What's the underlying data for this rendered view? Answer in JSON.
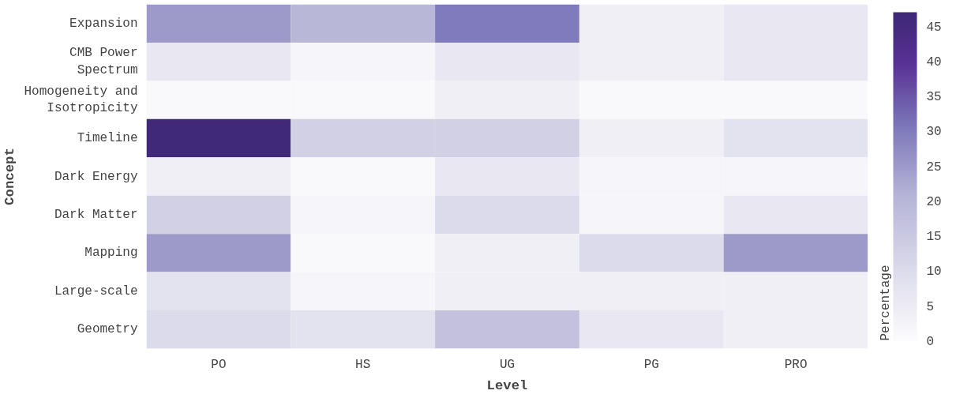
{
  "chart_data": {
    "type": "heatmap",
    "xlabel": "Level",
    "ylabel": "Concept",
    "clabel": "Percentage",
    "categories": [
      "PO",
      "HS",
      "UG",
      "PG",
      "PRO"
    ],
    "y_categories": [
      "Expansion",
      "CMB Power Spectrum",
      "Homogeneity and Isotropicity",
      "Timeline",
      "Dark Energy",
      "Dark Matter",
      "Mapping",
      "Large-scale",
      "Geometry"
    ],
    "cells": [
      [
        25,
        20,
        30,
        4,
        6
      ],
      [
        6,
        2,
        6,
        4,
        6
      ],
      [
        1,
        1,
        4,
        1,
        1
      ],
      [
        46,
        13,
        13,
        4,
        8
      ],
      [
        4,
        1,
        6,
        2,
        2
      ],
      [
        13,
        2,
        10,
        2,
        6
      ],
      [
        25,
        1,
        4,
        10,
        25
      ],
      [
        8,
        2,
        4,
        4,
        4
      ],
      [
        10,
        8,
        17,
        6,
        4
      ]
    ],
    "clim": [
      0,
      47
    ],
    "cticks": [
      0,
      5,
      10,
      15,
      20,
      25,
      30,
      35,
      40,
      45
    ],
    "grid": false
  }
}
